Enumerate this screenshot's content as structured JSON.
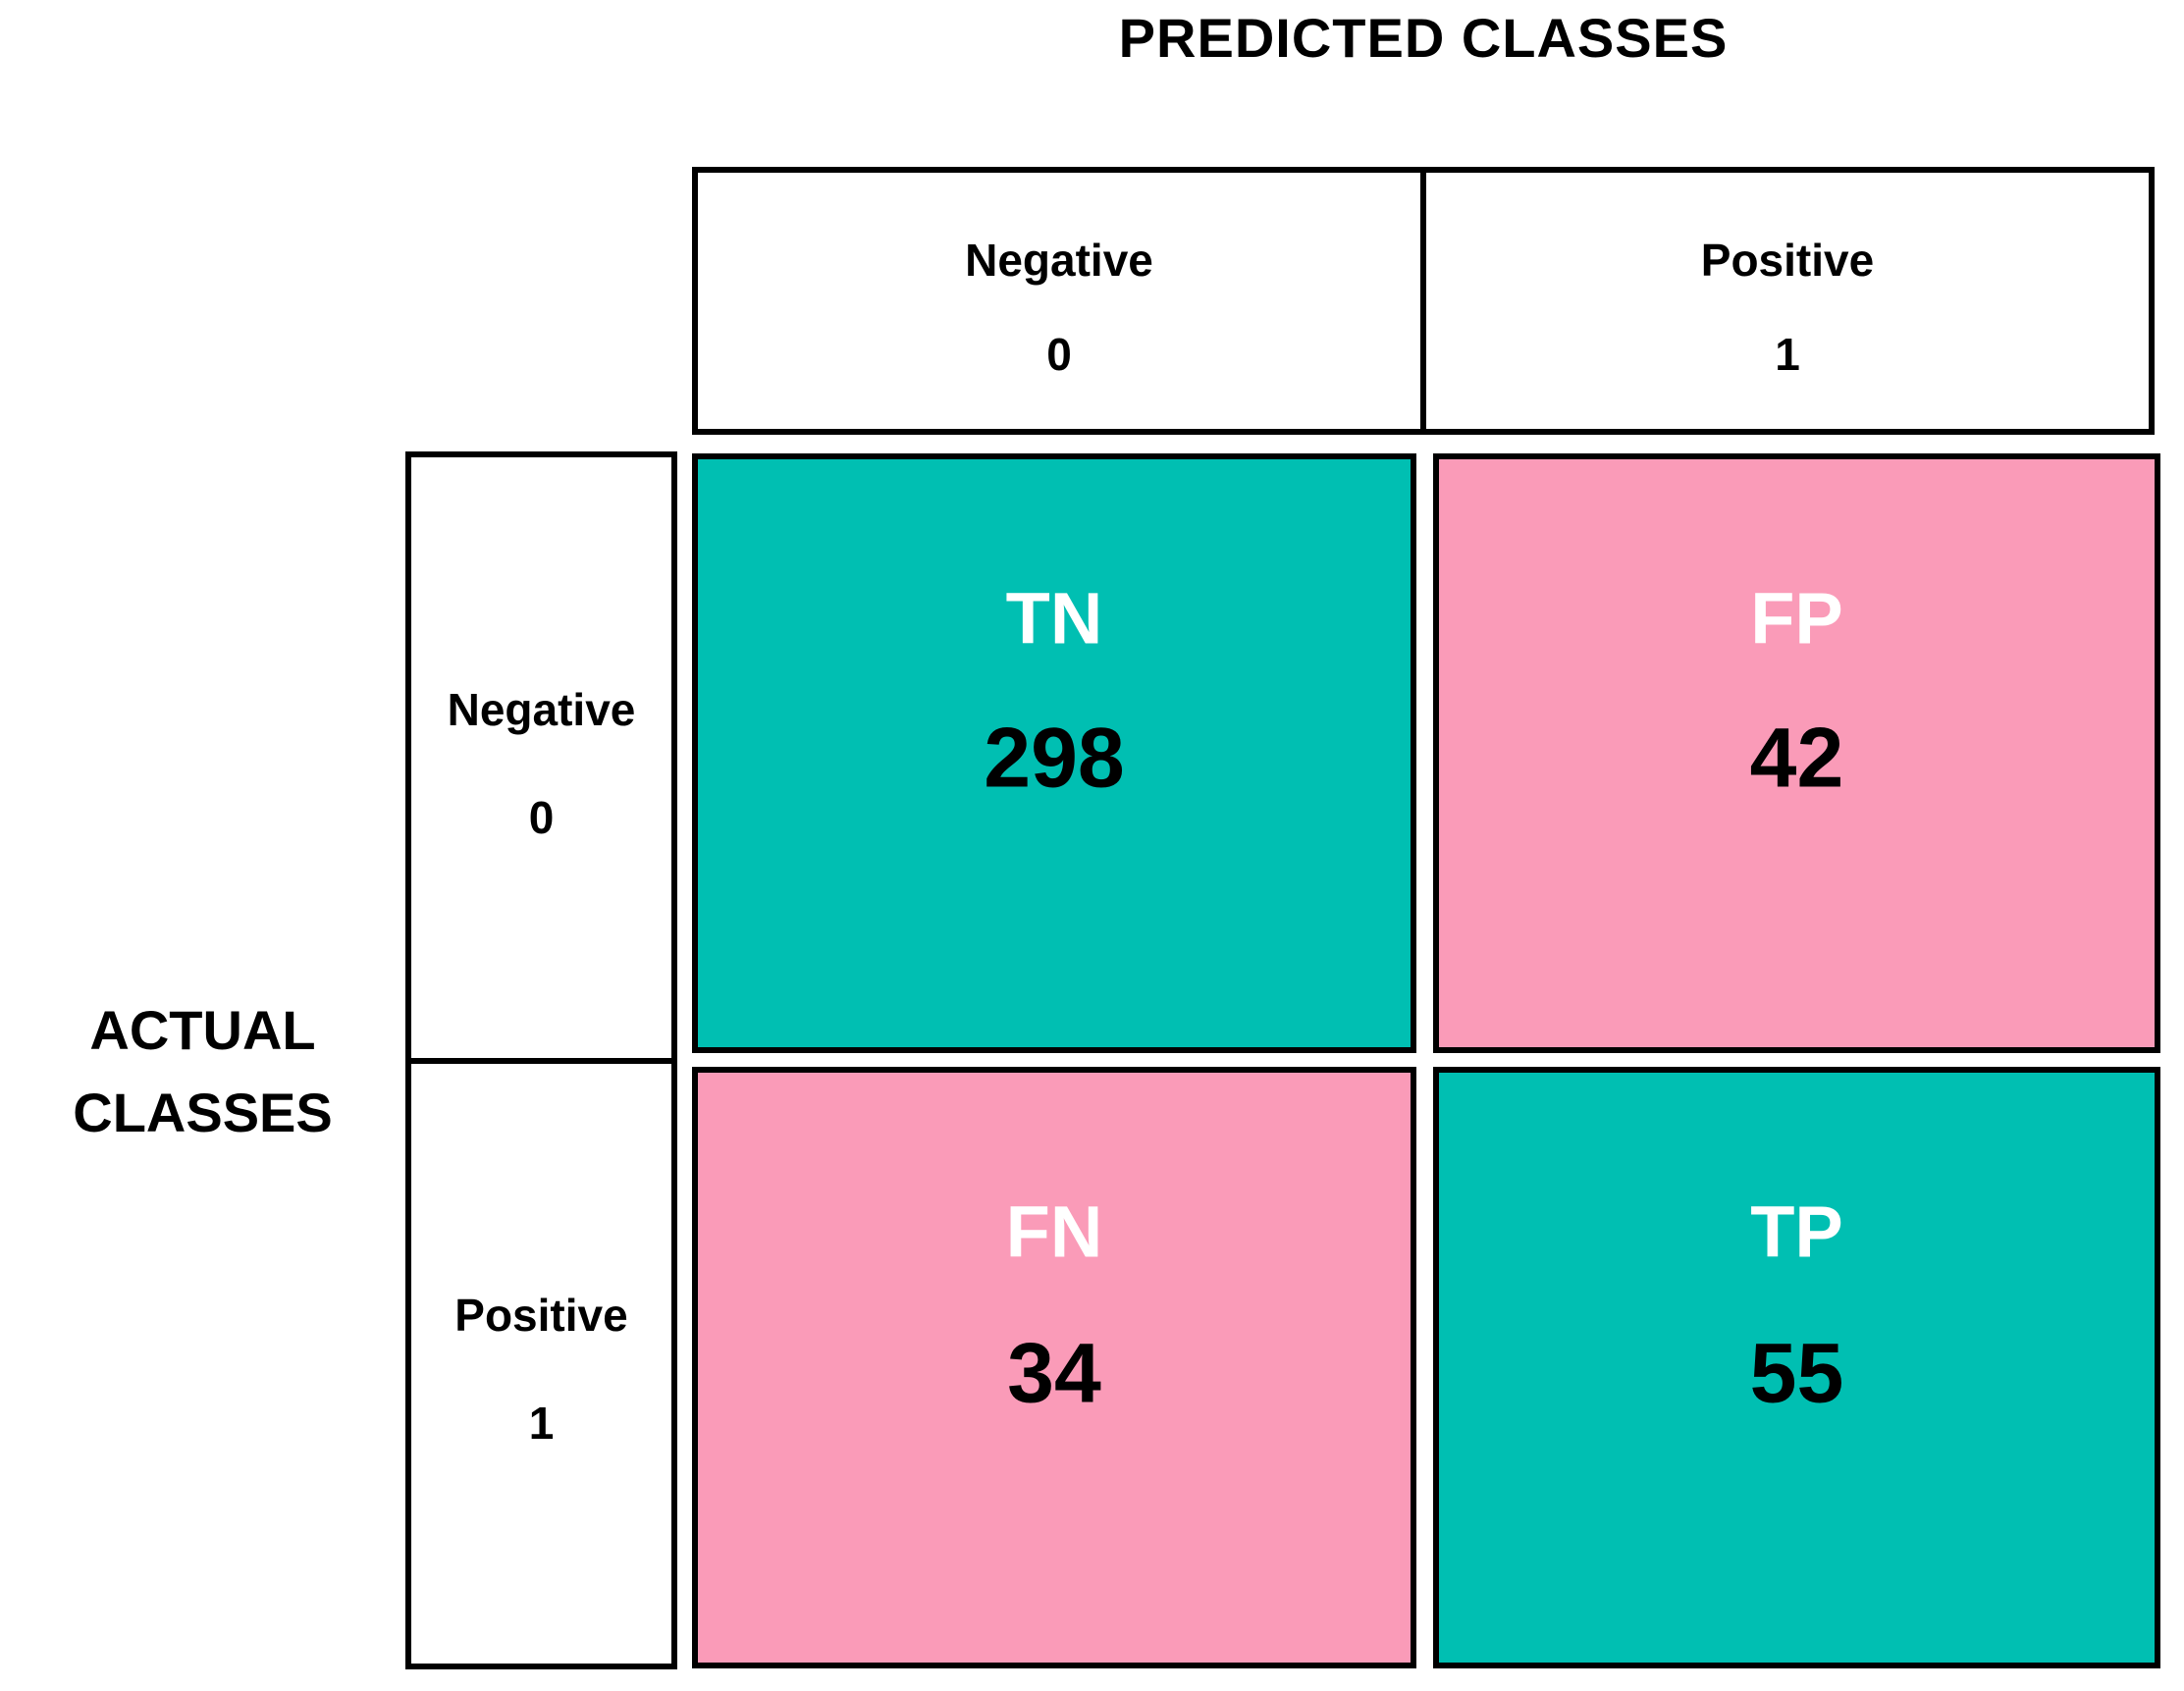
{
  "chart_data": {
    "type": "heatmap",
    "subtype": "confusion-matrix",
    "title": "PREDICTED CLASSES",
    "x_axis_title": "PREDICTED CLASSES",
    "y_axis_title": "ACTUAL CLASSES",
    "y_axis_title_lines": [
      "ACTUAL",
      "CLASSES"
    ],
    "columns": [
      {
        "label": "Negative",
        "class_value": "0"
      },
      {
        "label": "Positive",
        "class_value": "1"
      }
    ],
    "rows": [
      {
        "label": "Negative",
        "class_value": "0"
      },
      {
        "label": "Positive",
        "class_value": "1"
      }
    ],
    "matrix": [
      [
        298,
        42
      ],
      [
        34,
        55
      ]
    ],
    "cells": [
      {
        "abbr": "TN",
        "value": "298",
        "row": "Negative 0",
        "col": "Negative 0",
        "color": "#00BFB2"
      },
      {
        "abbr": "FP",
        "value": "42",
        "row": "Negative 0",
        "col": "Positive 1",
        "color": "#FA9BB8"
      },
      {
        "abbr": "FN",
        "value": "34",
        "row": "Positive 1",
        "col": "Negative 0",
        "color": "#FA9BB8"
      },
      {
        "abbr": "TP",
        "value": "55",
        "row": "Positive 1",
        "col": "Positive 1",
        "color": "#00BFB2"
      }
    ],
    "colors": {
      "correct_cell": "#00BFB2",
      "error_cell": "#FA9BB8",
      "border": "#000000",
      "abbr_text": "#FFFFFF",
      "value_text": "#000000"
    },
    "legend": "none",
    "grid": "off"
  }
}
